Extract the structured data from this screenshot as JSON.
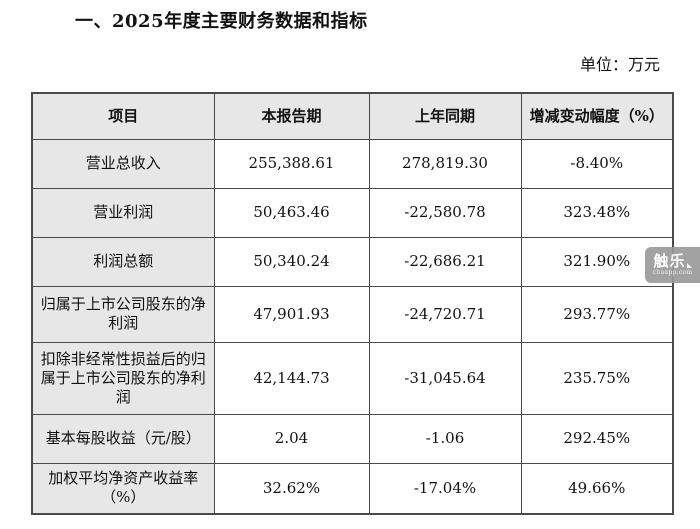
{
  "page": {
    "title": "一、2025年度主要财务数据和指标",
    "unit_label": "单位：万元"
  },
  "table": {
    "headers": [
      "项目",
      "本报告期",
      "上年同期",
      "增减变动幅度（%）"
    ],
    "rows": [
      {
        "item": "营业总收入",
        "current": "255,388.61",
        "prior": "278,819.30",
        "change": "-8.40%"
      },
      {
        "item": "营业利润",
        "current": "50,463.46",
        "prior": "-22,580.78",
        "change": "323.48%"
      },
      {
        "item": "利润总额",
        "current": "50,340.24",
        "prior": "-22,686.21",
        "change": "321.90%"
      },
      {
        "item": "归属于上市公司股东的净利润",
        "current": "47,901.93",
        "prior": "-24,720.71",
        "change": "293.77%"
      },
      {
        "item": "扣除非经常性损益后的归属于上市公司股东的净利润",
        "current": "42,144.73",
        "prior": "-31,045.64",
        "change": "235.75%"
      },
      {
        "item": "基本每股收益（元/股）",
        "current": "2.04",
        "prior": "-1.06",
        "change": "292.45%"
      },
      {
        "item": "加权平均净资产收益率（%）",
        "current": "32.62%",
        "prior": "-17.04%",
        "change": "49.66%"
      }
    ]
  },
  "watermark": {
    "name": "触乐",
    "site": "chuapp.com"
  },
  "colors": {
    "cell_gray": "#e7e7e7",
    "border_color": "#4a4a4a",
    "text_color": "#111111",
    "watermark_bg": "#9b9b9b",
    "page_bg": "#ffffff"
  }
}
